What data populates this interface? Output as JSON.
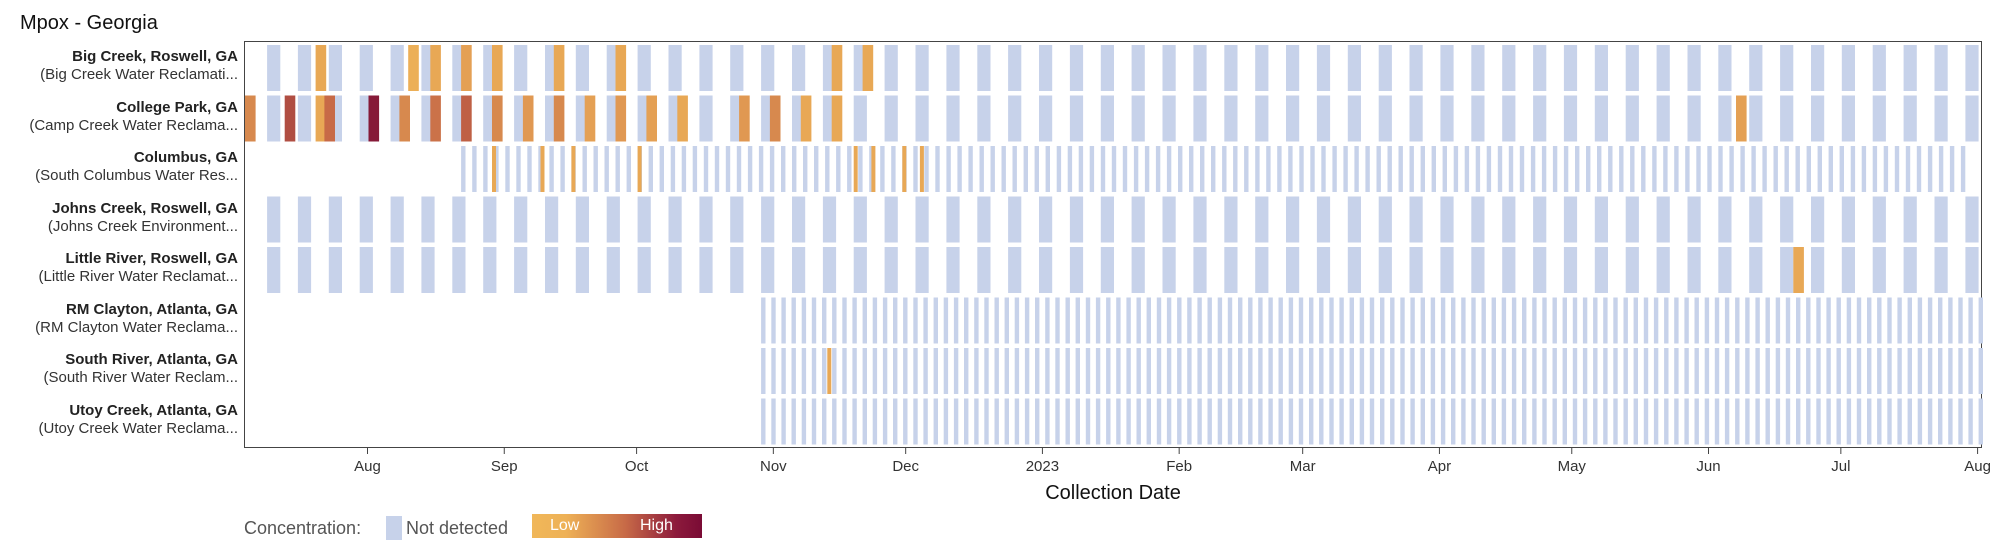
{
  "title": "Mpox - Georgia",
  "colors": {
    "not_detected": "#c7d2ea",
    "low": "#f0b759",
    "mid": "#c76a47",
    "high": "#7a0b35"
  },
  "chart_data": {
    "type": "heatmap",
    "title": "Mpox - Georgia",
    "xlabel": "Collection Date",
    "ylabel": "",
    "x_range": [
      "2022-07-04",
      "2023-08-02"
    ],
    "x_ticks": [
      {
        "date": "2022-08-01",
        "label": "Aug"
      },
      {
        "date": "2022-09-01",
        "label": "Sep"
      },
      {
        "date": "2022-10-01",
        "label": "Oct"
      },
      {
        "date": "2022-11-01",
        "label": "Nov"
      },
      {
        "date": "2022-12-01",
        "label": "Dec"
      },
      {
        "date": "2023-01-01",
        "label": "2023"
      },
      {
        "date": "2023-02-01",
        "label": "Feb"
      },
      {
        "date": "2023-03-01",
        "label": "Mar"
      },
      {
        "date": "2023-04-01",
        "label": "Apr"
      },
      {
        "date": "2023-05-01",
        "label": "May"
      },
      {
        "date": "2023-06-01",
        "label": "Jun"
      },
      {
        "date": "2023-07-01",
        "label": "Jul"
      },
      {
        "date": "2023-08-01",
        "label": "Aug"
      }
    ],
    "legend": {
      "label": "Concentration:",
      "not_detected": "Not detected",
      "low": "Low",
      "high": "High",
      "placement": "bottom-left"
    },
    "sites": [
      {
        "name": "Big Creek, Roswell, GA",
        "plant": "(Big Creek Water Reclamati...",
        "schedule": {
          "start": "2022-07-09",
          "end": "2023-07-30",
          "every_days": 7,
          "width_days": 3
        },
        "detections": [
          {
            "date": "2022-07-20",
            "level": 0.1
          },
          {
            "date": "2022-08-10",
            "level": 0.05
          },
          {
            "date": "2022-08-15",
            "level": 0.1
          },
          {
            "date": "2022-08-22",
            "level": 0.15
          },
          {
            "date": "2022-08-29",
            "level": 0.1
          },
          {
            "date": "2022-09-12",
            "level": 0.1
          },
          {
            "date": "2022-09-26",
            "level": 0.1
          },
          {
            "date": "2022-11-14",
            "level": 0.1
          },
          {
            "date": "2022-11-21",
            "level": 0.1
          }
        ]
      },
      {
        "name": "College Park, GA",
        "plant": "(Camp Creek Water Reclama...",
        "schedule": {
          "start": "2022-07-09",
          "end": "2023-07-30",
          "every_days": 7,
          "width_days": 3
        },
        "detections": [
          {
            "date": "2022-07-04",
            "level": 0.3
          },
          {
            "date": "2022-07-13",
            "level": 0.65
          },
          {
            "date": "2022-07-20",
            "level": 0.1
          },
          {
            "date": "2022-07-22",
            "level": 0.5
          },
          {
            "date": "2022-08-01",
            "level": 0.92
          },
          {
            "date": "2022-08-08",
            "level": 0.3
          },
          {
            "date": "2022-08-15",
            "level": 0.45
          },
          {
            "date": "2022-08-22",
            "level": 0.55
          },
          {
            "date": "2022-08-29",
            "level": 0.3
          },
          {
            "date": "2022-09-05",
            "level": 0.2
          },
          {
            "date": "2022-09-12",
            "level": 0.3
          },
          {
            "date": "2022-09-19",
            "level": 0.15
          },
          {
            "date": "2022-09-26",
            "level": 0.2
          },
          {
            "date": "2022-10-03",
            "level": 0.15
          },
          {
            "date": "2022-10-10",
            "level": 0.1
          },
          {
            "date": "2022-10-24",
            "level": 0.2
          },
          {
            "date": "2022-10-31",
            "level": 0.3
          },
          {
            "date": "2022-11-07",
            "level": 0.1
          },
          {
            "date": "2022-11-14",
            "level": 0.1
          },
          {
            "date": "2023-06-07",
            "level": 0.15
          }
        ]
      },
      {
        "name": "Columbus, GA",
        "plant": "(South Columbus Water Res...",
        "schedule": {
          "start": "2022-08-22",
          "end": "2023-07-30",
          "every_days": 2.5,
          "width_days": 1
        },
        "detections": [
          {
            "date": "2022-08-29",
            "level": 0.1
          },
          {
            "date": "2022-09-09",
            "level": 0.1
          },
          {
            "date": "2022-09-16",
            "level": 0.1
          },
          {
            "date": "2022-10-01",
            "level": 0.1
          },
          {
            "date": "2022-11-19",
            "level": 0.1
          },
          {
            "date": "2022-11-23",
            "level": 0.1
          },
          {
            "date": "2022-11-30",
            "level": 0.1
          },
          {
            "date": "2022-12-04",
            "level": 0.1
          }
        ]
      },
      {
        "name": "Johns Creek, Roswell, GA",
        "plant": "(Johns Creek Environment...",
        "schedule": {
          "start": "2022-07-09",
          "end": "2023-07-30",
          "every_days": 7,
          "width_days": 3
        },
        "detections": []
      },
      {
        "name": "Little River, Roswell, GA",
        "plant": "(Little River Water Reclamat...",
        "schedule": {
          "start": "2022-07-09",
          "end": "2023-07-30",
          "every_days": 7,
          "width_days": 3
        },
        "detections": [
          {
            "date": "2023-06-20",
            "level": 0.1
          }
        ]
      },
      {
        "name": "RM Clayton, Atlanta, GA",
        "plant": "(RM Clayton Water Reclama...",
        "schedule": {
          "start": "2022-10-29",
          "end": "2023-08-01",
          "every_days": 2.3,
          "width_days": 1
        },
        "detections": []
      },
      {
        "name": "South River, Atlanta, GA",
        "plant": "(South River Water Reclam...",
        "schedule": {
          "start": "2022-10-29",
          "end": "2023-08-01",
          "every_days": 2.3,
          "width_days": 1
        },
        "detections": [
          {
            "date": "2022-11-13",
            "level": 0.1
          }
        ]
      },
      {
        "name": "Utoy Creek, Atlanta, GA",
        "plant": "(Utoy Creek Water Reclama...",
        "schedule": {
          "start": "2022-10-29",
          "end": "2023-08-01",
          "every_days": 2.3,
          "width_days": 1
        },
        "detections": []
      }
    ]
  }
}
